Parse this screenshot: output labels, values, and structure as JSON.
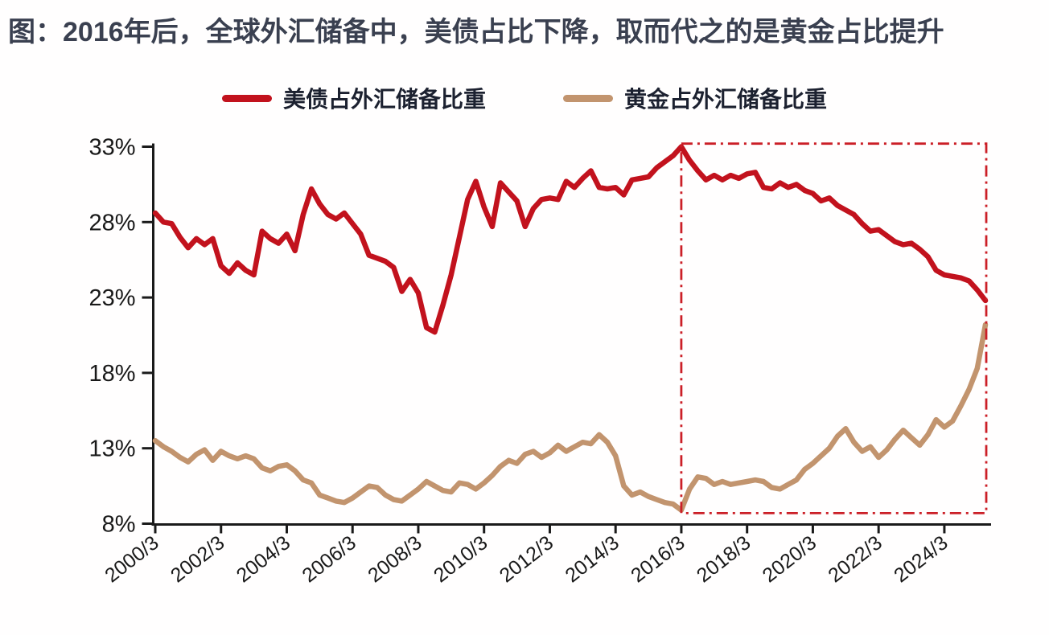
{
  "title": "图：2016年后，全球外汇储备中，美债占比下降，取而代之的是黄金占比提升",
  "legend": [
    {
      "label": "美债占外汇储备比重",
      "color": "#c2121d"
    },
    {
      "label": "黄金占外汇储备比重",
      "color": "#c2946e"
    }
  ],
  "colors": {
    "title": "#3a4050",
    "axis": "#1a1a1a",
    "tick_label": "#191919",
    "annotation_box": "#cb1f27",
    "background": "#fffefe"
  },
  "chart_data": {
    "type": "line",
    "x_start_label": "2000/3",
    "x_end_label": "2025/6",
    "x_frequency": "quarterly",
    "x_tick_labels": [
      "2000/3",
      "2002/3",
      "2004/3",
      "2006/3",
      "2008/3",
      "2010/3",
      "2012/3",
      "2014/3",
      "2016/3",
      "2018/3",
      "2020/3",
      "2022/3",
      "2024/3"
    ],
    "y_ticks": [
      8,
      13,
      18,
      23,
      28,
      33
    ],
    "y_tick_labels": [
      "8%",
      "13%",
      "18%",
      "23%",
      "28%",
      "33%"
    ],
    "ylim": [
      8,
      33
    ],
    "grid": false,
    "legend_position": "top-center",
    "series": [
      {
        "name": "美债占外汇储备比重",
        "color": "#c2121d",
        "values": [
          28.6,
          28.0,
          27.9,
          27.0,
          26.3,
          26.9,
          26.5,
          26.9,
          25.1,
          24.6,
          25.3,
          24.8,
          24.5,
          27.4,
          26.9,
          26.6,
          27.2,
          26.1,
          28.5,
          30.2,
          29.2,
          28.5,
          28.2,
          28.6,
          27.9,
          27.2,
          25.8,
          25.6,
          25.4,
          25.0,
          23.4,
          24.2,
          23.3,
          21.0,
          20.7,
          22.5,
          24.5,
          27.0,
          29.5,
          30.7,
          29.0,
          27.7,
          30.6,
          30.0,
          29.4,
          27.7,
          28.9,
          29.5,
          29.6,
          29.5,
          30.7,
          30.3,
          30.9,
          31.4,
          30.3,
          30.2,
          30.3,
          29.8,
          30.8,
          30.9,
          31.0,
          31.6,
          32.0,
          32.4,
          33.0,
          32.1,
          31.4,
          30.8,
          31.1,
          30.8,
          31.1,
          30.9,
          31.2,
          31.3,
          30.3,
          30.2,
          30.6,
          30.3,
          30.5,
          30.1,
          29.9,
          29.4,
          29.6,
          29.1,
          28.8,
          28.5,
          27.9,
          27.4,
          27.5,
          27.1,
          26.7,
          26.5,
          26.6,
          26.2,
          25.7,
          24.8,
          24.5,
          24.4,
          24.3,
          24.1,
          23.5,
          22.8
        ]
      },
      {
        "name": "黄金占外汇储备比重",
        "color": "#c2946e",
        "values": [
          13.5,
          13.1,
          12.8,
          12.4,
          12.1,
          12.6,
          12.9,
          12.2,
          12.8,
          12.5,
          12.3,
          12.5,
          12.3,
          11.7,
          11.5,
          11.8,
          11.9,
          11.5,
          10.9,
          10.7,
          9.9,
          9.7,
          9.5,
          9.4,
          9.7,
          10.1,
          10.5,
          10.4,
          9.9,
          9.6,
          9.5,
          9.9,
          10.3,
          10.8,
          10.5,
          10.2,
          10.1,
          10.7,
          10.6,
          10.3,
          10.7,
          11.2,
          11.8,
          12.2,
          12.0,
          12.6,
          12.8,
          12.4,
          12.7,
          13.2,
          12.8,
          13.1,
          13.4,
          13.3,
          13.9,
          13.4,
          12.5,
          10.5,
          9.9,
          10.1,
          9.8,
          9.6,
          9.4,
          9.3,
          8.9,
          10.3,
          11.1,
          11.0,
          10.6,
          10.8,
          10.6,
          10.7,
          10.8,
          10.9,
          10.8,
          10.4,
          10.3,
          10.6,
          10.9,
          11.6,
          12.0,
          12.5,
          13.0,
          13.8,
          14.3,
          13.4,
          12.8,
          13.1,
          12.4,
          12.9,
          13.6,
          14.2,
          13.7,
          13.2,
          13.9,
          14.9,
          14.4,
          14.8,
          15.8,
          16.9,
          18.3,
          21.2
        ]
      }
    ],
    "annotation_box": {
      "description": "red dash-dot rectangle highlighting the period from 2016/3 onward",
      "from_x_label": "2016/3",
      "to_x_label": "2025/6",
      "y_range": [
        8.7,
        33.2
      ],
      "color": "#cb1f27"
    }
  }
}
